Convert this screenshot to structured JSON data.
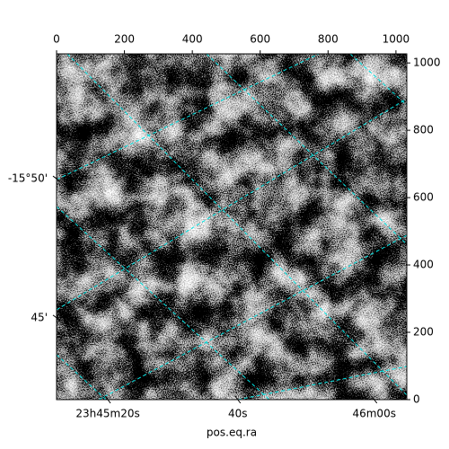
{
  "chart_data": {
    "type": "image",
    "xlabel": "pos.eq.ra",
    "xlim": [
      0,
      1032
    ],
    "ylim": [
      0,
      1027
    ],
    "xticks": [
      0,
      200,
      400,
      600,
      800,
      1000
    ],
    "yticks": [
      0,
      200,
      400,
      600,
      800,
      1000
    ],
    "ra_ticks": [
      {
        "value": 151,
        "label": "23h45m20s"
      },
      {
        "value": 534,
        "label": "40s"
      },
      {
        "value": 936,
        "label": "46m00s"
      }
    ],
    "dec_ticks": [
      {
        "value": 656,
        "label": "-15°50'"
      },
      {
        "value": 243,
        "label": "45'"
      }
    ]
  }
}
